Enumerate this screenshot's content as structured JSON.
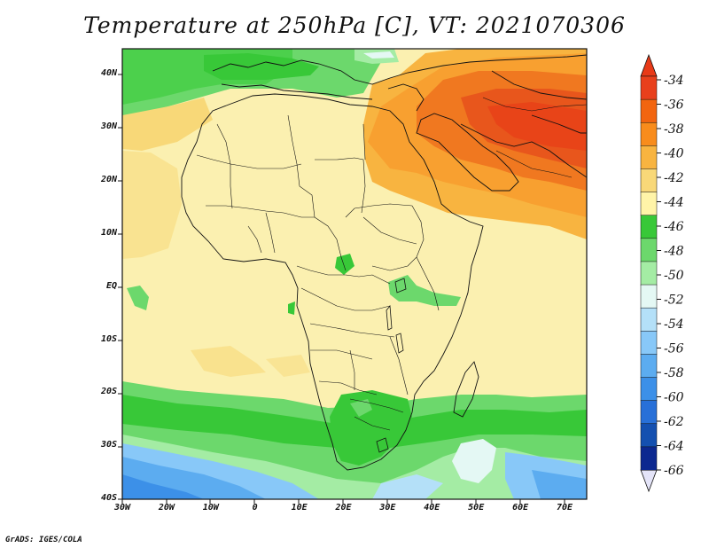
{
  "title": "Temperature at 250hPa [C], VT: 2021070306",
  "credit": "GrADS: IGES/COLA",
  "map": {
    "x_ticks": [
      "30W",
      "20W",
      "10W",
      "0",
      "10E",
      "20E",
      "30E",
      "40E",
      "50E",
      "60E",
      "70E"
    ],
    "y_ticks": [
      "40N",
      "30N",
      "20N",
      "10N",
      "EQ",
      "10S",
      "20S",
      "30S",
      "40S"
    ]
  },
  "colorbar": {
    "labels": [
      "-34",
      "-36",
      "-38",
      "-40",
      "-42",
      "-44",
      "-46",
      "-48",
      "-50",
      "-52",
      "-54",
      "-56",
      "-58",
      "-60",
      "-62",
      "-64",
      "-66"
    ],
    "colors": [
      "#e8401c",
      "#f26510",
      "#f88c1c",
      "#f8b440",
      "#f8d878",
      "#fff4a8",
      "#38c838",
      "#6cd86c",
      "#a4eca4",
      "#e4f8f4",
      "#b4e0f8",
      "#88c8f8",
      "#5cacf0",
      "#3c90e8",
      "#2870d8",
      "#1450b0",
      "#0c2890"
    ],
    "top_arrow_color": "#e83a18",
    "bottom_arrow_color": "#e4e4f8"
  },
  "palette": {
    "land_bg": "#fbf0a8",
    "warm_orange": "#f8a030",
    "hot": "#f07020",
    "hottest": "#e84e1c"
  }
}
